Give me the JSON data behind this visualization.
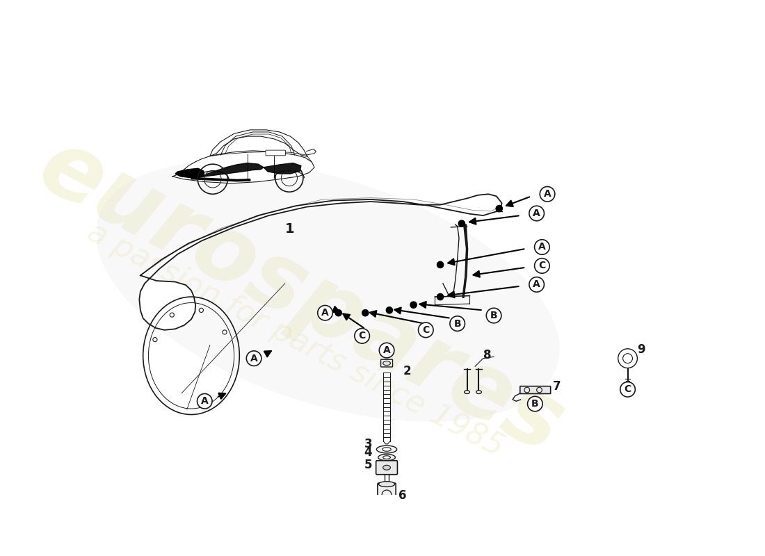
{
  "background_color": "#ffffff",
  "line_color": "#1a1a1a",
  "watermark1": "eurospares",
  "watermark2": "a passion for parts since 1985",
  "watermark_color": "#c8c850",
  "watermark_alpha": 0.18,
  "part_label_1": "1",
  "part_label_2": "2",
  "part_label_3": "3",
  "part_label_4": "4",
  "part_label_5": "5",
  "part_label_6": "6",
  "part_label_7": "7",
  "part_label_8": "8",
  "part_label_9": "9"
}
